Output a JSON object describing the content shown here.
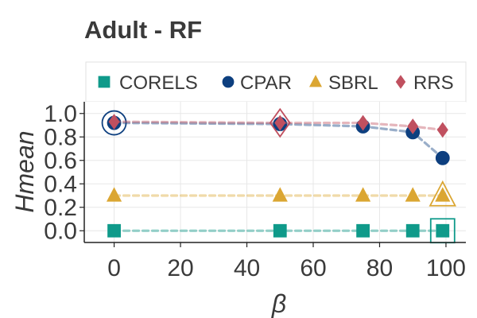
{
  "chart_data": {
    "type": "line",
    "title": "Adult - RF",
    "xlabel": "β",
    "ylabel": "Hmean",
    "xlim": [
      -9,
      106
    ],
    "ylim": [
      -0.1,
      1.1
    ],
    "xticks": [
      0,
      20,
      40,
      60,
      80,
      100
    ],
    "xtick_labels": [
      "0",
      "20",
      "40",
      "60",
      "80",
      "100"
    ],
    "yticks": [
      0.0,
      0.2,
      0.4,
      0.6,
      0.8,
      1.0
    ],
    "ytick_labels": [
      "0.0",
      "0.2",
      "0.4",
      "0.6",
      "0.8",
      "1.0"
    ],
    "grid": true,
    "legend_position": "top",
    "x": [
      0,
      50,
      75,
      90,
      99
    ],
    "series": [
      {
        "name": "CORELS",
        "marker": "square",
        "color": "#0f9a8a",
        "values": [
          0.0,
          0.0,
          0.0,
          0.0,
          0.0
        ],
        "highlight_index": 4
      },
      {
        "name": "CPAR",
        "marker": "circle",
        "color": "#0d3f7f",
        "values": [
          0.92,
          0.91,
          0.89,
          0.84,
          0.62
        ],
        "highlight_index": 0
      },
      {
        "name": "SBRL",
        "marker": "triangle",
        "color": "#dba632",
        "values": [
          0.3,
          0.3,
          0.3,
          0.3,
          0.3
        ],
        "highlight_index": 4
      },
      {
        "name": "RRS",
        "marker": "diamond",
        "color": "#c0505f",
        "values": [
          0.93,
          0.92,
          0.92,
          0.89,
          0.86
        ],
        "highlight_index": 1
      }
    ]
  }
}
